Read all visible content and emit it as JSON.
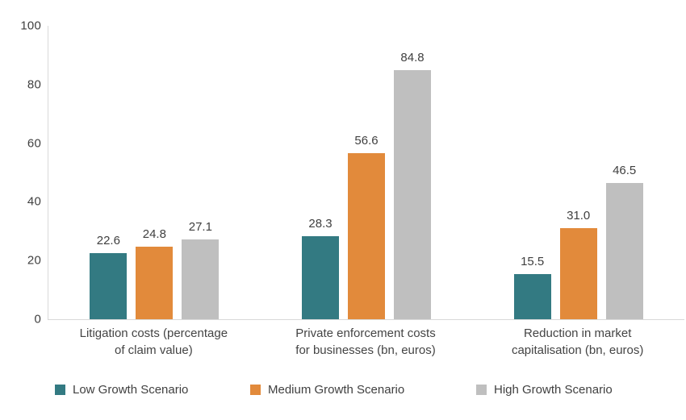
{
  "chart_data": {
    "type": "bar",
    "title": "",
    "xlabel": "",
    "ylabel": "",
    "ylim": [
      0,
      100
    ],
    "yticks": [
      0,
      20,
      40,
      60,
      80,
      100
    ],
    "grid": false,
    "legend_position": "bottom",
    "axis_color": "#D9D9D9",
    "text_color": "#404040",
    "categories": [
      "Litigation costs (percentage\nof claim value)",
      "Private enforcement costs\nfor businesses (bn, euros)",
      "Reduction in market\ncapitalisation (bn, euros)"
    ],
    "series": [
      {
        "name": "Low Growth Scenario",
        "color": "#337A82",
        "values": [
          22.6,
          28.3,
          15.5
        ],
        "value_labels": [
          "22.6",
          "28.3",
          "15.5"
        ]
      },
      {
        "name": "Medium Growth Scenario",
        "color": "#E28A3B",
        "values": [
          24.8,
          56.6,
          31.0
        ],
        "value_labels": [
          "24.8",
          "56.6",
          "31.0"
        ]
      },
      {
        "name": "High Growth Scenario",
        "color": "#BFBFBF",
        "values": [
          27.1,
          84.8,
          46.5
        ],
        "value_labels": [
          "27.1",
          "84.8",
          "46.5"
        ]
      }
    ]
  }
}
